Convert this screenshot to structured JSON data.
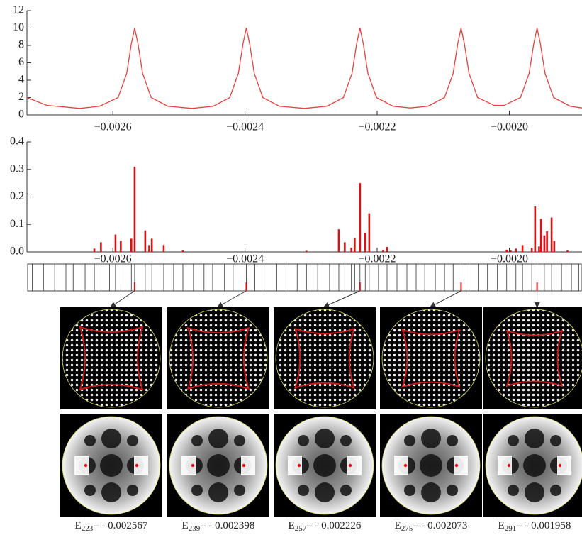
{
  "chart_data": [
    {
      "type": "line",
      "color": "#e8413a",
      "x": [
        -0.00273,
        -0.0027,
        -0.00265,
        -0.00262,
        -0.002592,
        -0.002579,
        -0.002572,
        -0.002567,
        -0.002562,
        -0.002555,
        -0.002542,
        -0.002517,
        -0.00248,
        -0.002448,
        -0.002423,
        -0.00241,
        -0.002403,
        -0.002398,
        -0.002393,
        -0.002386,
        -0.002373,
        -0.002348,
        -0.00231,
        -0.002276,
        -0.002251,
        -0.002238,
        -0.002231,
        -0.002226,
        -0.002221,
        -0.002214,
        -0.002201,
        -0.002176,
        -0.00215,
        -0.002123,
        -0.002098,
        -0.002085,
        -0.002078,
        -0.002073,
        -0.002068,
        -0.002061,
        -0.002048,
        -0.002023,
        -0.002008,
        -0.001983,
        -0.00197,
        -0.001963,
        -0.001958,
        -0.001953,
        -0.001946,
        -0.001933,
        -0.001908,
        -0.00189
      ],
      "values": [
        2.0,
        1.1,
        0.75,
        1.0,
        2.0,
        4.8,
        8.2,
        10,
        8.2,
        4.8,
        2.0,
        1.0,
        0.75,
        1.0,
        2.0,
        4.8,
        8.2,
        10,
        8.2,
        4.8,
        2.0,
        1.0,
        0.75,
        1.0,
        2.0,
        4.8,
        8.2,
        10,
        8.2,
        4.8,
        2.0,
        1.0,
        0.8,
        1.0,
        2.0,
        4.8,
        8.2,
        10,
        8.2,
        4.8,
        2.0,
        1.1,
        1.1,
        2.0,
        4.8,
        8.2,
        10,
        8.2,
        4.8,
        2.0,
        1.0,
        0.8
      ],
      "xlim": [
        -0.00273,
        -0.00189
      ],
      "xticks": [
        {
          "value": -0.0026,
          "label": "−0.0026"
        },
        {
          "value": -0.0024,
          "label": "−0.0024"
        },
        {
          "value": -0.0022,
          "label": "−0.0022"
        },
        {
          "value": -0.002,
          "label": "−0.0020"
        }
      ],
      "ylim": [
        0,
        12
      ],
      "yticks": [
        0,
        2,
        4,
        6,
        8,
        10,
        12
      ]
    },
    {
      "type": "bar",
      "color": "#e01010",
      "x": [
        -0.002628,
        -0.002618,
        -0.002596,
        -0.002588,
        -0.002572,
        -0.002567,
        -0.002551,
        -0.002545,
        -0.002541,
        -0.002523,
        -0.002494,
        -0.002307,
        -0.002258,
        -0.002249,
        -0.002239,
        -0.002234,
        -0.002226,
        -0.002218,
        -0.002212,
        -0.002191,
        -0.002185,
        -0.002004,
        -0.001998,
        -0.00199,
        -0.00198,
        -0.001966,
        -0.001961,
        -0.001955,
        -0.001952,
        -0.001947,
        -0.001943,
        -0.001936,
        -0.001932,
        -0.001912
      ],
      "values": [
        0.012,
        0.035,
        0.063,
        0.04,
        0.048,
        0.31,
        0.078,
        0.025,
        0.048,
        0.025,
        0.005,
        0.004,
        0.082,
        0.035,
        0.015,
        0.05,
        0.25,
        0.07,
        0.14,
        0.008,
        0.018,
        0.008,
        0.005,
        0.012,
        0.025,
        0.015,
        0.165,
        0.02,
        0.12,
        0.06,
        0.075,
        0.125,
        0.04,
        0.005
      ],
      "xlim": [
        -0.00273,
        -0.00189
      ],
      "xticks": [
        {
          "value": -0.0026,
          "label": "−0.0026"
        },
        {
          "value": -0.0024,
          "label": "−0.0024"
        },
        {
          "value": -0.0022,
          "label": "−0.0022"
        },
        {
          "value": -0.002,
          "label": "−0.0020"
        }
      ],
      "ylim": [
        0,
        0.4
      ],
      "yticks": [
        {
          "value": 0,
          "label": "0.0"
        },
        0.1,
        0.2,
        0.3,
        0.4
      ]
    },
    {
      "type": "levels",
      "color": "#333333",
      "x": [
        -0.002722,
        -0.002705,
        -0.002688,
        -0.002671,
        -0.00266,
        -0.002642,
        -0.002628,
        -0.002618,
        -0.002605,
        -0.002596,
        -0.002588,
        -0.002572,
        -0.002567,
        -0.002551,
        -0.002541,
        -0.002523,
        -0.002508,
        -0.002494,
        -0.002478,
        -0.002462,
        -0.002449,
        -0.002431,
        -0.002418,
        -0.002398,
        -0.002385,
        -0.002371,
        -0.002352,
        -0.002338,
        -0.002321,
        -0.002307,
        -0.00229,
        -0.002272,
        -0.002258,
        -0.002249,
        -0.002239,
        -0.002234,
        -0.002226,
        -0.002218,
        -0.002212,
        -0.002198,
        -0.002185,
        -0.00217,
        -0.002155,
        -0.002141,
        -0.002128,
        -0.002112,
        -0.002098,
        -0.002085,
        -0.002073,
        -0.002061,
        -0.002047,
        -0.002033,
        -0.002018,
        -0.002004,
        -0.00199,
        -0.00198,
        -0.001966,
        -0.001958,
        -0.001947,
        -0.001936,
        -0.001921,
        -0.001906,
        -0.001895
      ],
      "xlim": [
        -0.00273,
        -0.00189
      ]
    }
  ],
  "states": [
    {
      "energy": -0.002567,
      "symbol": "E",
      "index": "223",
      "equals": "= - 0.002567"
    },
    {
      "energy": -0.002398,
      "symbol": "E",
      "index": "239",
      "equals": "= - 0.002398"
    },
    {
      "energy": -0.002226,
      "symbol": "E",
      "index": "257",
      "equals": "= - 0.002226"
    },
    {
      "energy": -0.002073,
      "symbol": "E",
      "index": "275",
      "equals": "= - 0.002073"
    },
    {
      "energy": -0.001958,
      "symbol": "E",
      "index": "291",
      "equals": "= - 0.001958"
    }
  ]
}
